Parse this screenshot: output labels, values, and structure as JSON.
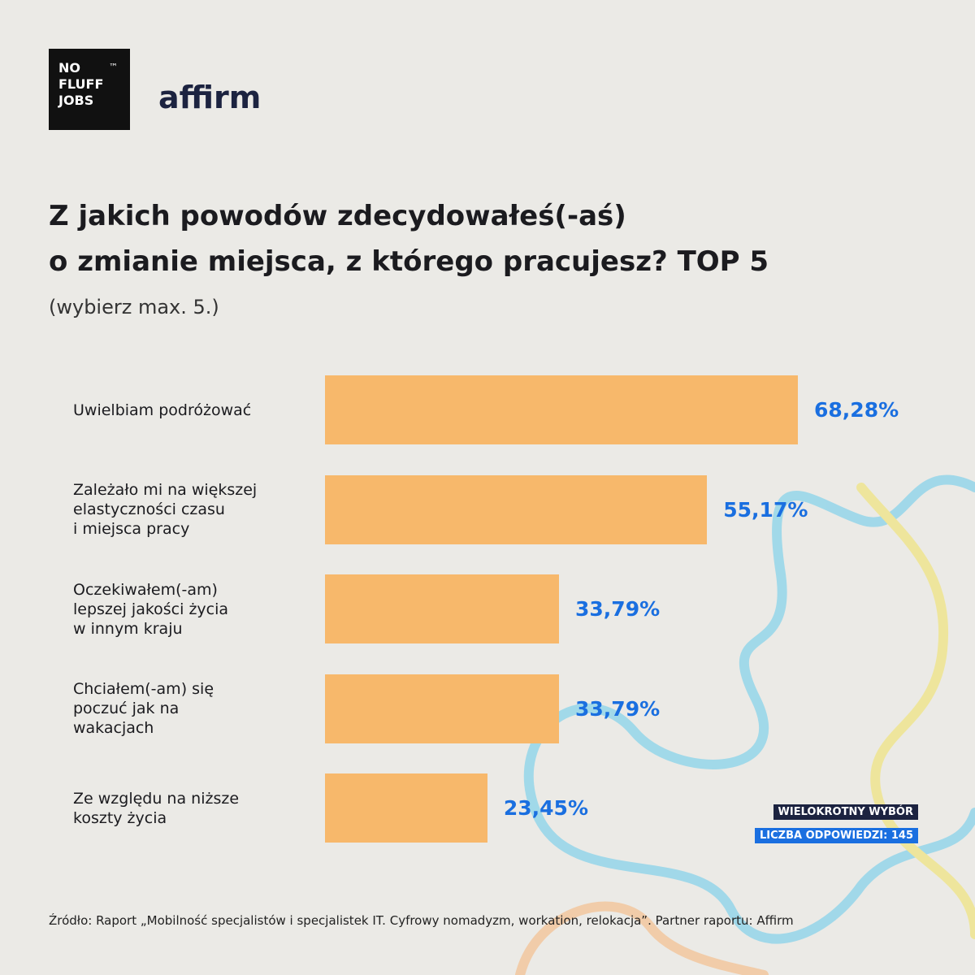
{
  "logo": {
    "lines": [
      "NO",
      "FLUFF",
      "JOBS"
    ],
    "tm": "™"
  },
  "partner": "affirm",
  "chart_data": {
    "type": "hbar",
    "title": "Z jakich powodów zdecydowałeś(-aś)\no zmianie miejsca, z którego pracujesz? TOP 5",
    "subtitle": "(wybierz max. 5.)",
    "categories": [
      "Uwielbiam podróżować",
      "Zależało mi na większej\nelastyczności czasu\ni miejsca pracy",
      "Oczekiwałem(-am)\nlepszej jakości życia\nw innym kraju",
      "Chciałem(-am) się\npoczuć jak na\nwakacjach",
      "Ze względu na niższe\nkoszty życia"
    ],
    "values": [
      68.28,
      55.17,
      33.79,
      33.79,
      23.45
    ],
    "value_labels": [
      "68,28%",
      "55,17%",
      "33,79%",
      "33,79%",
      "23,45%"
    ],
    "color": "#f7b86b",
    "label_color": "#1a6fe0",
    "badges": [
      "WIELOKROTNY WYBÓR",
      "LICZBA ODPOWIEDZI: 145"
    ],
    "source": "Źródło: Raport „Mobilność specjalistów i specjalistek IT. Cyfrowy nomadyzm, workation, relokacja”. Partner raportu: Affirm"
  }
}
